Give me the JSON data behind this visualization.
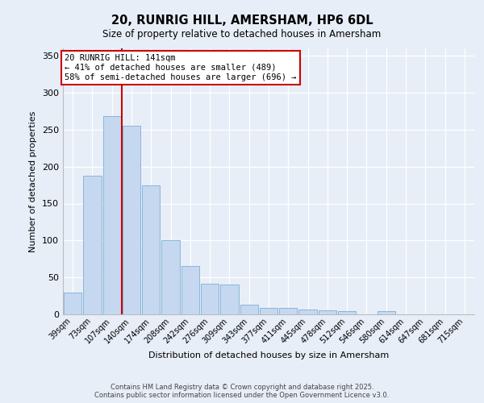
{
  "title_line1": "20, RUNRIG HILL, AMERSHAM, HP6 6DL",
  "title_line2": "Size of property relative to detached houses in Amersham",
  "xlabel": "Distribution of detached houses by size in Amersham",
  "ylabel": "Number of detached properties",
  "bar_labels": [
    "39sqm",
    "73sqm",
    "107sqm",
    "140sqm",
    "174sqm",
    "208sqm",
    "242sqm",
    "276sqm",
    "309sqm",
    "343sqm",
    "377sqm",
    "411sqm",
    "445sqm",
    "478sqm",
    "512sqm",
    "546sqm",
    "580sqm",
    "614sqm",
    "647sqm",
    "681sqm",
    "715sqm"
  ],
  "bar_values": [
    30,
    188,
    268,
    255,
    175,
    100,
    65,
    42,
    40,
    13,
    9,
    9,
    7,
    5,
    4,
    0,
    4,
    0,
    0,
    0,
    0
  ],
  "bar_color": "#c5d8f0",
  "bar_edgecolor": "#7aafd4",
  "vline_index": 2.5,
  "vline_color": "#cc0000",
  "annotation_text": "20 RUNRIG HILL: 141sqm\n← 41% of detached houses are smaller (489)\n58% of semi-detached houses are larger (696) →",
  "annotation_box_facecolor": "white",
  "annotation_box_edgecolor": "#cc0000",
  "ylim": [
    0,
    360
  ],
  "yticks": [
    0,
    50,
    100,
    150,
    200,
    250,
    300,
    350
  ],
  "bg_color": "#e8eef8",
  "grid_color": "#ffffff",
  "footer_line1": "Contains HM Land Registry data © Crown copyright and database right 2025.",
  "footer_line2": "Contains public sector information licensed under the Open Government Licence v3.0."
}
